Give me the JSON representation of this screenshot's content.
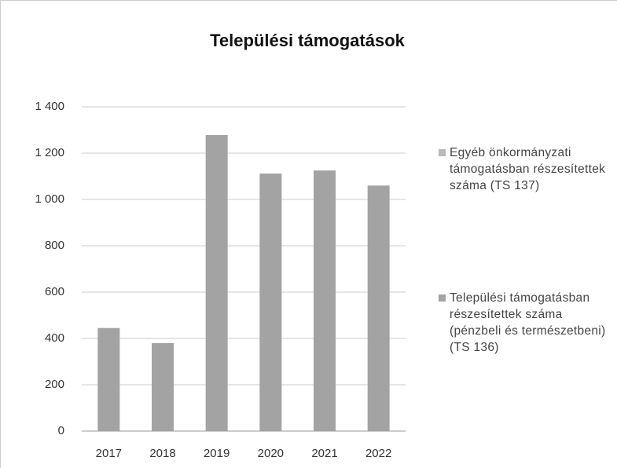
{
  "chart_data": {
    "type": "bar",
    "stacked": true,
    "title": "Települési támogatások",
    "categories": [
      "2017",
      "2018",
      "2019",
      "2020",
      "2021",
      "2022"
    ],
    "series": [
      {
        "name": "Egyéb önkormányzati támogatásban részesítettek száma (TS 137)",
        "color": "#b9b9b9",
        "values": [
          0,
          0,
          0,
          0,
          0,
          0
        ]
      },
      {
        "name": "Települési támogatásban részesítettek száma (pénzbeli és természetbeni) (TS 136)",
        "color": "#a3a3a3",
        "values": [
          445,
          380,
          1278,
          1112,
          1125,
          1060
        ]
      }
    ],
    "ylim": [
      0,
      1400
    ],
    "yticks": [
      0,
      200,
      400,
      600,
      800,
      {
        "value": 1000,
        "label": "1 000"
      },
      {
        "value": 1200,
        "label": "1 200"
      },
      {
        "value": 1400,
        "label": "1 400"
      }
    ],
    "grid": true
  }
}
